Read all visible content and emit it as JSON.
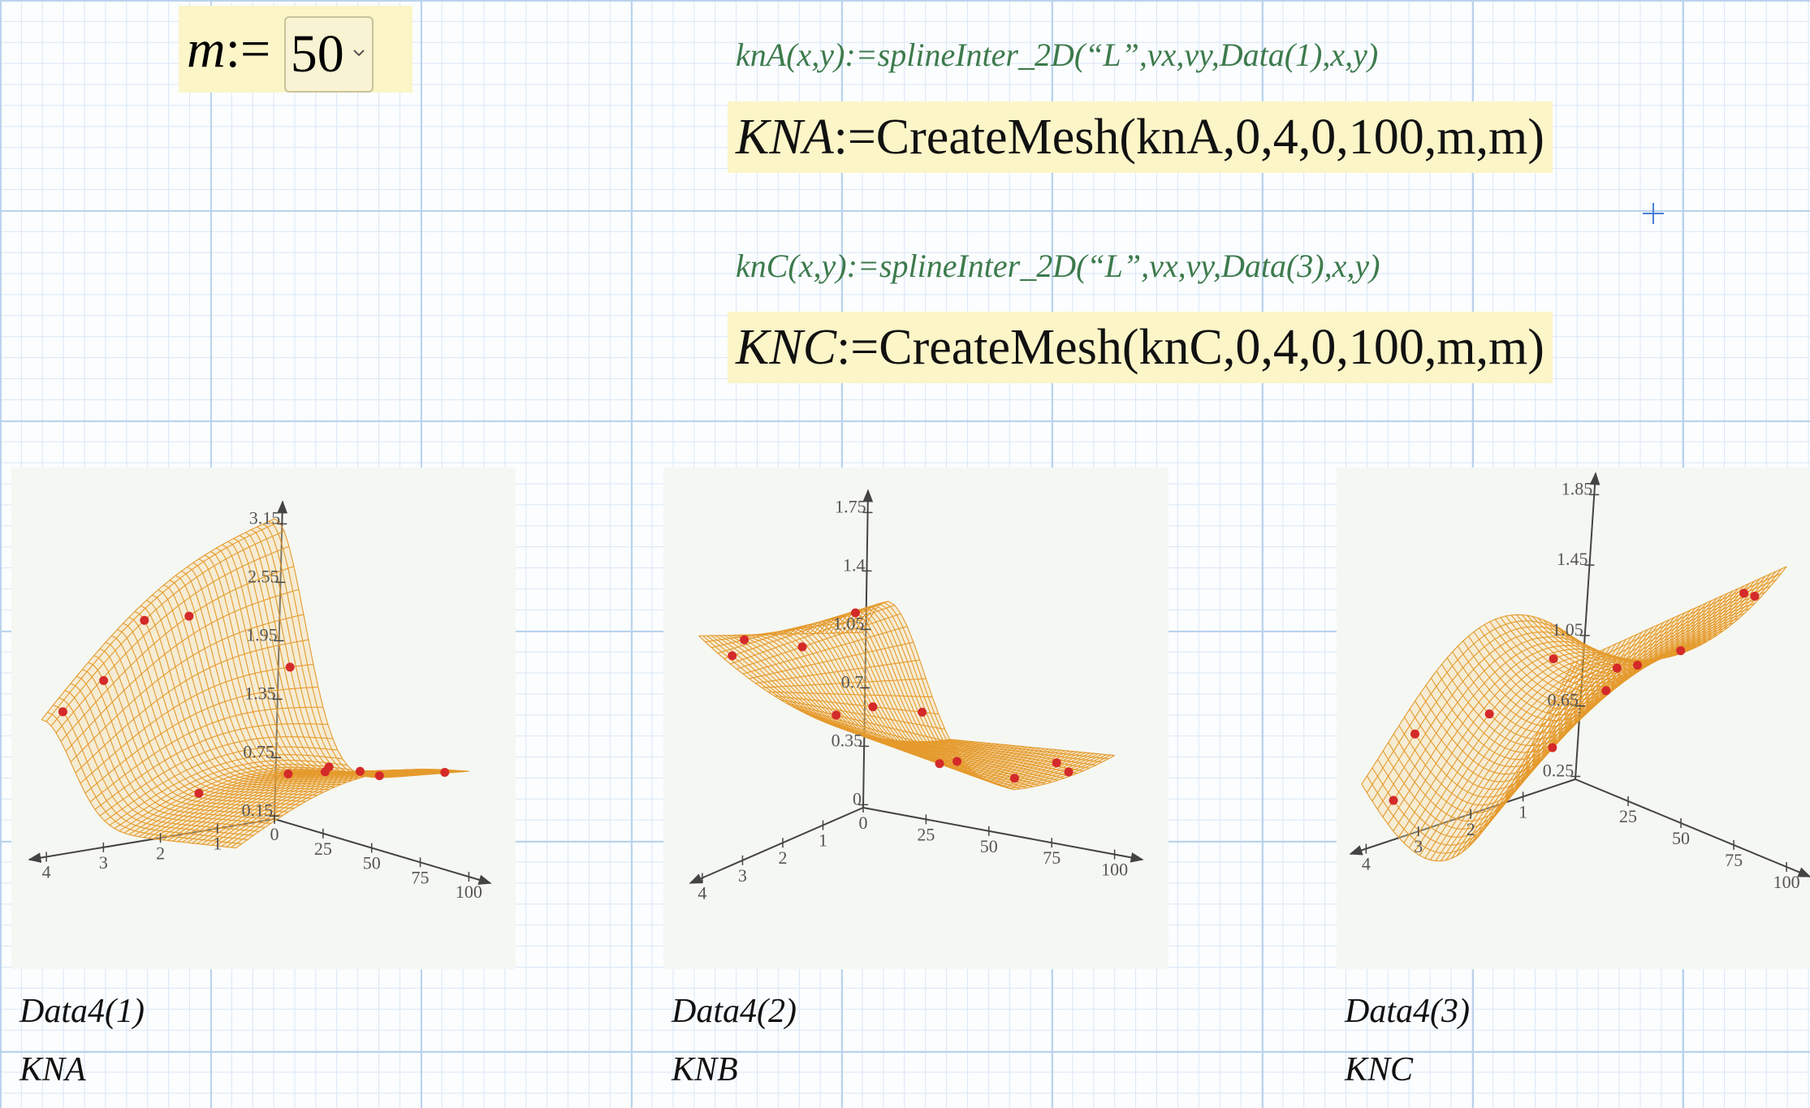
{
  "m_definition": {
    "name": "m",
    "op": ":=",
    "value": 50
  },
  "definitions": [
    {
      "lhs": "knA(x,y)",
      "op": ":=",
      "rhs": "splineInter_2D(“L”,vx,vy,Data(1),x,y)"
    },
    {
      "lhs": "knC(x,y)",
      "op": ":=",
      "rhs": "splineInter_2D(“L”,vx,vy,Data(3),x,y)"
    }
  ],
  "meshes": [
    {
      "lhs": "KNA",
      "op": ":=",
      "func": "CreateMesh",
      "args": "(knA,0,4,0,100,m,m)"
    },
    {
      "lhs": "KNC",
      "op": ":=",
      "func": "CreateMesh",
      "args": "(knC,0,4,0,100,m,m)"
    }
  ],
  "plots": [
    {
      "z_ticks": [
        3.15,
        2.55,
        1.95,
        1.35,
        0.75,
        0.15
      ],
      "x_ticks": [
        4,
        3,
        2,
        1,
        0
      ],
      "y_ticks": [
        25,
        50,
        75,
        100
      ],
      "caption": "Data4(1)",
      "surface": "KNA"
    },
    {
      "z_ticks": [
        1.75,
        1.4,
        1.05,
        0.7,
        0.35,
        0
      ],
      "x_ticks": [
        4,
        3,
        2,
        1,
        0
      ],
      "y_ticks": [
        25,
        50,
        75,
        100
      ],
      "caption": "Data4(2)",
      "surface": "KNB"
    },
    {
      "z_ticks": [
        1.85,
        1.45,
        1.05,
        0.65,
        0.25
      ],
      "x_ticks": [
        4,
        3,
        2,
        1
      ],
      "y_ticks": [
        25,
        50,
        75,
        100
      ],
      "caption": "Data4(3)",
      "surface": "KNC"
    }
  ]
}
